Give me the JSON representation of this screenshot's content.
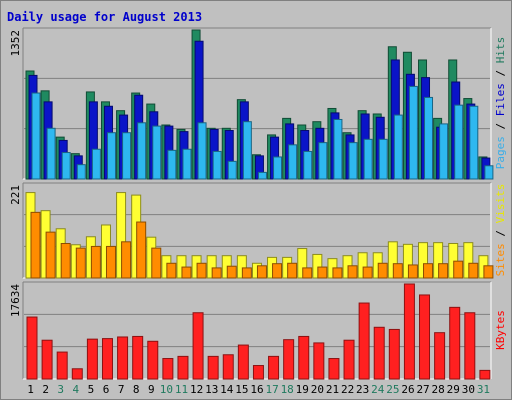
{
  "chart_data": [
    {
      "type": "bar",
      "title": "Daily usage for August 2013",
      "ymax_label": "1352",
      "ylim": [
        0,
        1352
      ],
      "legend": [
        {
          "text": "Pages",
          "color": "#3aaee8"
        },
        {
          "text": " / ",
          "color": "#000000"
        },
        {
          "text": "Files",
          "color": "#0000cc"
        },
        {
          "text": " / ",
          "color": "#000000"
        },
        {
          "text": "Hits",
          "color": "#1f7a5e"
        }
      ],
      "categories": [
        "1",
        "2",
        "3",
        "4",
        "5",
        "6",
        "7",
        "8",
        "9",
        "10",
        "11",
        "12",
        "13",
        "14",
        "15",
        "16",
        "17",
        "18",
        "19",
        "20",
        "21",
        "22",
        "23",
        "24",
        "25",
        "26",
        "27",
        "28",
        "29",
        "30",
        "31"
      ],
      "series": [
        {
          "name": "Hits",
          "color": "#1f8a60",
          "values": [
            980,
            800,
            380,
            230,
            790,
            700,
            620,
            780,
            680,
            490,
            450,
            1352,
            460,
            460,
            720,
            220,
            400,
            550,
            490,
            520,
            640,
            420,
            620,
            590,
            1200,
            1150,
            1080,
            550,
            1080,
            730,
            200
          ]
        },
        {
          "name": "Files",
          "color": "#0a14c8",
          "values": [
            940,
            700,
            350,
            210,
            700,
            660,
            580,
            760,
            610,
            480,
            430,
            1250,
            450,
            440,
            700,
            210,
            380,
            500,
            440,
            460,
            600,
            400,
            590,
            560,
            1080,
            950,
            920,
            470,
            880,
            680,
            190
          ]
        },
        {
          "name": "Pages",
          "color": "#2eb8f0",
          "values": [
            780,
            460,
            240,
            130,
            270,
            420,
            420,
            510,
            480,
            260,
            270,
            510,
            250,
            160,
            520,
            60,
            200,
            310,
            250,
            330,
            540,
            330,
            360,
            360,
            580,
            840,
            740,
            500,
            670,
            660,
            120
          ]
        }
      ]
    },
    {
      "type": "bar",
      "ymax_label": "221",
      "ylim": [
        0,
        221
      ],
      "legend": [
        {
          "text": "Sites",
          "color": "#ff8c00"
        },
        {
          "text": " / ",
          "color": "#000000"
        },
        {
          "text": "Visits",
          "color": "#e8e800"
        }
      ],
      "series": [
        {
          "name": "Visits",
          "color": "#ffff33",
          "values": [
            203,
            160,
            117,
            79,
            98,
            126,
            203,
            197,
            97,
            53,
            53,
            53,
            53,
            53,
            53,
            35,
            49,
            49,
            70,
            56,
            46,
            53,
            60,
            60,
            86,
            80,
            84,
            84,
            82,
            84,
            53
          ]
        },
        {
          "name": "Sites",
          "color": "#ff8c00",
          "values": [
            156,
            109,
            82,
            71,
            75,
            75,
            86,
            133,
            71,
            35,
            26,
            35,
            24,
            28,
            24,
            29,
            34,
            35,
            24,
            26,
            24,
            29,
            26,
            35,
            34,
            31,
            34,
            34,
            40,
            35,
            29
          ]
        }
      ]
    },
    {
      "type": "bar",
      "ymax_label": "17634",
      "ylim": [
        0,
        17634
      ],
      "legend": [
        {
          "text": "KBytes",
          "color": "#ff0000"
        }
      ],
      "series": [
        {
          "name": "KBytes",
          "color": "#ff2020",
          "values": [
            11500,
            7200,
            5000,
            1900,
            7400,
            7500,
            7800,
            7900,
            7000,
            3800,
            4200,
            12300,
            4200,
            4500,
            6300,
            2500,
            4200,
            7300,
            7900,
            6700,
            3800,
            7200,
            14100,
            9600,
            9200,
            17634,
            15600,
            8600,
            13300,
            12300,
            1600
          ]
        }
      ]
    }
  ],
  "day_labels": [
    {
      "text": "1",
      "weekend": false
    },
    {
      "text": "2",
      "weekend": false
    },
    {
      "text": "3",
      "weekend": true
    },
    {
      "text": "4",
      "weekend": true
    },
    {
      "text": "5",
      "weekend": false
    },
    {
      "text": "6",
      "weekend": false
    },
    {
      "text": "7",
      "weekend": false
    },
    {
      "text": "8",
      "weekend": false
    },
    {
      "text": "9",
      "weekend": false
    },
    {
      "text": "10",
      "weekend": true
    },
    {
      "text": "11",
      "weekend": true
    },
    {
      "text": "12",
      "weekend": false
    },
    {
      "text": "13",
      "weekend": false
    },
    {
      "text": "14",
      "weekend": false
    },
    {
      "text": "15",
      "weekend": false
    },
    {
      "text": "16",
      "weekend": false
    },
    {
      "text": "17",
      "weekend": true
    },
    {
      "text": "18",
      "weekend": true
    },
    {
      "text": "19",
      "weekend": false
    },
    {
      "text": "20",
      "weekend": false
    },
    {
      "text": "21",
      "weekend": false
    },
    {
      "text": "22",
      "weekend": false
    },
    {
      "text": "23",
      "weekend": false
    },
    {
      "text": "24",
      "weekend": true
    },
    {
      "text": "25",
      "weekend": true
    },
    {
      "text": "26",
      "weekend": false
    },
    {
      "text": "27",
      "weekend": false
    },
    {
      "text": "28",
      "weekend": false
    },
    {
      "text": "29",
      "weekend": false
    },
    {
      "text": "30",
      "weekend": false
    },
    {
      "text": "31",
      "weekend": true
    }
  ],
  "colors": {
    "weekday_label": "#000000",
    "weekend_label": "#1f7a5e",
    "title": "#0000cc",
    "panel_bg": "#c0c0c0"
  }
}
